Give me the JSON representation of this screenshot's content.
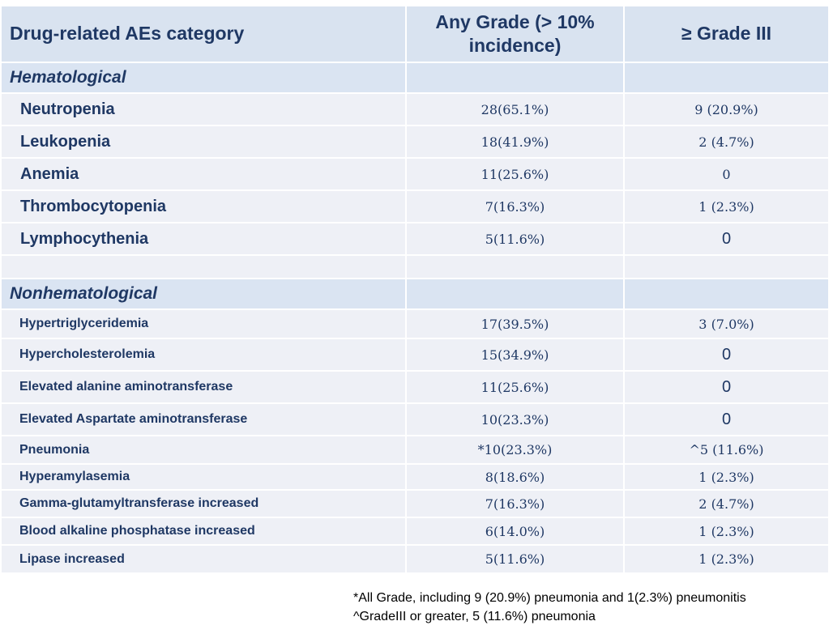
{
  "table": {
    "headers": [
      "Drug-related AEs category",
      "Any Grade (> 10% incidence)",
      "≥ Grade III"
    ],
    "hematological": {
      "label": "Hematological",
      "rows": [
        {
          "name": "Neutropenia",
          "any_grade": "28(65.1%)",
          "grade3": "9 (20.9%)"
        },
        {
          "name": "Leukopenia",
          "any_grade": "18(41.9%)",
          "grade3": "2 (4.7%)"
        },
        {
          "name": "Anemia",
          "any_grade": "11(25.6%)",
          "grade3": "0"
        },
        {
          "name": "Thrombocytopenia",
          "any_grade": "7(16.3%)",
          "grade3": "1 (2.3%)"
        },
        {
          "name": "Lymphocythenia",
          "any_grade": "5(11.6%)",
          "grade3": "0"
        }
      ]
    },
    "nonhematological": {
      "label": "Nonhematological",
      "rows": [
        {
          "name": "Hypertriglyceridemia",
          "any_grade": "17(39.5%)",
          "grade3": "3 (7.0%)"
        },
        {
          "name": "Hypercholesterolemia",
          "any_grade": "15(34.9%)",
          "grade3": "0"
        },
        {
          "name": "Elevated alanine aminotransferase",
          "any_grade": "11(25.6%)",
          "grade3": "0"
        },
        {
          "name": "Elevated Aspartate aminotransferase",
          "any_grade": "10(23.3%)",
          "grade3": "0"
        },
        {
          "name": "Pneumonia",
          "any_grade": "*10(23.3%)",
          "grade3": "^5 (11.6%)"
        },
        {
          "name": "Hyperamylasemia",
          "any_grade": "8(18.6%)",
          "grade3": "1 (2.3%)"
        },
        {
          "name": "Gamma-glutamyltransferase increased",
          "any_grade": "7(16.3%)",
          "grade3": "2 (4.7%)"
        },
        {
          "name": "Blood alkaline phosphatase increased",
          "any_grade": "6(14.0%)",
          "grade3": "1 (2.3%)"
        },
        {
          "name": "Lipase increased",
          "any_grade": "5(11.6%)",
          "grade3": "1 (2.3%)"
        }
      ]
    }
  },
  "footnotes": [
    "*All Grade, including 9 (20.9%) pneumonia and 1(2.3%) pneumonitis",
    "^GradeIII or greater, 5 (11.6%) pneumonia"
  ],
  "colors": {
    "header_bg": "#d9e3f0",
    "row_bg": "#eef0f6",
    "text": "#1f3864"
  }
}
